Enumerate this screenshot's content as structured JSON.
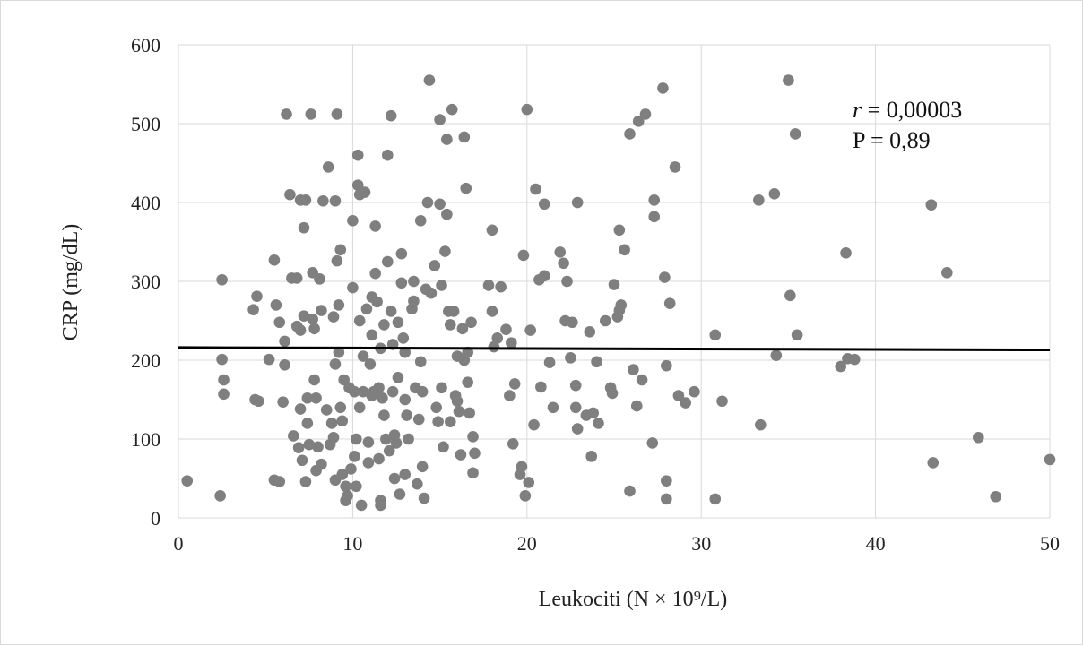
{
  "chart_data": {
    "type": "scatter",
    "title": "",
    "xlabel": "Leukociti (N × 10⁹/L)",
    "ylabel": "CRP (mg/dL)",
    "xlim": [
      0,
      50
    ],
    "ylim": [
      0,
      600
    ],
    "x_ticks": [
      0,
      10,
      20,
      30,
      40,
      50
    ],
    "y_ticks": [
      0,
      100,
      200,
      300,
      400,
      500,
      600
    ],
    "x_tick_labels": [
      "0",
      "10",
      "20",
      "30",
      "40",
      "50"
    ],
    "y_tick_labels": [
      "0",
      "100",
      "200",
      "300",
      "400",
      "500",
      "600"
    ],
    "grid": true,
    "annotation": {
      "r_symbol": "r",
      "r_value": " = 0,00003",
      "p_text": "P = 0,89"
    },
    "trendline": {
      "x": [
        0,
        50
      ],
      "y": [
        216,
        213
      ]
    },
    "marker_color": "#7f7f7f",
    "line_color": "#000000",
    "series": [
      {
        "points": [
          [
            0.5,
            47
          ],
          [
            2.4,
            28
          ],
          [
            2.5,
            302
          ],
          [
            2.5,
            201
          ],
          [
            2.6,
            175
          ],
          [
            2.6,
            157
          ],
          [
            4.3,
            264
          ],
          [
            4.4,
            150
          ],
          [
            4.5,
            281
          ],
          [
            4.6,
            148
          ],
          [
            5.2,
            201
          ],
          [
            5.5,
            327
          ],
          [
            5.5,
            48
          ],
          [
            5.6,
            270
          ],
          [
            5.8,
            248
          ],
          [
            5.8,
            46
          ],
          [
            6.0,
            147
          ],
          [
            6.1,
            224
          ],
          [
            6.1,
            194
          ],
          [
            6.2,
            512
          ],
          [
            6.4,
            410
          ],
          [
            6.5,
            304
          ],
          [
            6.6,
            104
          ],
          [
            6.8,
            243
          ],
          [
            6.8,
            304
          ],
          [
            6.9,
            89
          ],
          [
            7.0,
            238
          ],
          [
            7.0,
            403
          ],
          [
            7.0,
            138
          ],
          [
            7.1,
            73
          ],
          [
            7.2,
            368
          ],
          [
            7.2,
            256
          ],
          [
            7.3,
            403
          ],
          [
            7.3,
            46
          ],
          [
            7.4,
            152
          ],
          [
            7.4,
            120
          ],
          [
            7.5,
            93
          ],
          [
            7.6,
            512
          ],
          [
            7.7,
            252
          ],
          [
            7.7,
            311
          ],
          [
            7.8,
            240
          ],
          [
            7.8,
            175
          ],
          [
            7.9,
            152
          ],
          [
            7.9,
            60
          ],
          [
            8.0,
            90
          ],
          [
            8.1,
            303
          ],
          [
            8.2,
            263
          ],
          [
            8.2,
            68
          ],
          [
            8.3,
            402
          ],
          [
            8.5,
            137
          ],
          [
            8.6,
            445
          ],
          [
            8.7,
            93
          ],
          [
            8.8,
            120
          ],
          [
            8.9,
            102
          ],
          [
            8.9,
            255
          ],
          [
            9.0,
            402
          ],
          [
            9.0,
            195
          ],
          [
            9.0,
            48
          ],
          [
            9.1,
            512
          ],
          [
            9.1,
            326
          ],
          [
            9.2,
            270
          ],
          [
            9.2,
            210
          ],
          [
            9.3,
            340
          ],
          [
            9.3,
            140
          ],
          [
            9.4,
            123
          ],
          [
            9.4,
            55
          ],
          [
            9.5,
            175
          ],
          [
            9.6,
            40
          ],
          [
            9.6,
            22
          ],
          [
            9.7,
            28
          ],
          [
            9.8,
            165
          ],
          [
            9.9,
            62
          ],
          [
            10.0,
            377
          ],
          [
            10.0,
            292
          ],
          [
            10.1,
            160
          ],
          [
            10.1,
            78
          ],
          [
            10.2,
            100
          ],
          [
            10.2,
            40
          ],
          [
            10.3,
            460
          ],
          [
            10.3,
            422
          ],
          [
            10.4,
            410
          ],
          [
            10.4,
            250
          ],
          [
            10.4,
            140
          ],
          [
            10.5,
            16
          ],
          [
            10.6,
            205
          ],
          [
            10.6,
            160
          ],
          [
            10.7,
            413
          ],
          [
            10.8,
            265
          ],
          [
            10.9,
            96
          ],
          [
            10.9,
            70
          ],
          [
            11.0,
            195
          ],
          [
            11.1,
            280
          ],
          [
            11.1,
            155
          ],
          [
            11.1,
            232
          ],
          [
            11.2,
            160
          ],
          [
            11.3,
            370
          ],
          [
            11.3,
            310
          ],
          [
            11.4,
            274
          ],
          [
            11.5,
            165
          ],
          [
            11.5,
            75
          ],
          [
            11.6,
            215
          ],
          [
            11.6,
            16
          ],
          [
            11.6,
            22
          ],
          [
            11.7,
            152
          ],
          [
            11.8,
            245
          ],
          [
            11.8,
            130
          ],
          [
            11.9,
            100
          ],
          [
            12.0,
            460
          ],
          [
            12.0,
            325
          ],
          [
            12.1,
            85
          ],
          [
            12.2,
            510
          ],
          [
            12.2,
            262
          ],
          [
            12.3,
            220
          ],
          [
            12.3,
            160
          ],
          [
            12.4,
            105
          ],
          [
            12.4,
            50
          ],
          [
            12.5,
            95
          ],
          [
            12.6,
            248
          ],
          [
            12.6,
            178
          ],
          [
            12.7,
            30
          ],
          [
            12.8,
            335
          ],
          [
            12.8,
            298
          ],
          [
            12.9,
            228
          ],
          [
            13.0,
            210
          ],
          [
            13.0,
            150
          ],
          [
            13.0,
            55
          ],
          [
            13.1,
            130
          ],
          [
            13.2,
            100
          ],
          [
            13.4,
            265
          ],
          [
            13.5,
            300
          ],
          [
            13.5,
            275
          ],
          [
            13.6,
            165
          ],
          [
            13.7,
            43
          ],
          [
            13.8,
            125
          ],
          [
            13.9,
            377
          ],
          [
            13.9,
            198
          ],
          [
            14.0,
            160
          ],
          [
            14.0,
            65
          ],
          [
            14.1,
            25
          ],
          [
            14.2,
            290
          ],
          [
            14.3,
            400
          ],
          [
            14.4,
            555
          ],
          [
            14.5,
            285
          ],
          [
            14.7,
            320
          ],
          [
            14.8,
            140
          ],
          [
            14.9,
            122
          ],
          [
            15.0,
            505
          ],
          [
            15.0,
            398
          ],
          [
            15.1,
            295
          ],
          [
            15.1,
            165
          ],
          [
            15.2,
            90
          ],
          [
            15.3,
            338
          ],
          [
            15.4,
            385
          ],
          [
            15.4,
            480
          ],
          [
            15.5,
            262
          ],
          [
            15.6,
            122
          ],
          [
            15.6,
            245
          ],
          [
            15.7,
            518
          ],
          [
            15.8,
            262
          ],
          [
            15.9,
            155
          ],
          [
            16.0,
            205
          ],
          [
            16.0,
            148
          ],
          [
            16.1,
            135
          ],
          [
            16.2,
            80
          ],
          [
            16.3,
            240
          ],
          [
            16.4,
            483
          ],
          [
            16.4,
            200
          ],
          [
            16.5,
            418
          ],
          [
            16.6,
            210
          ],
          [
            16.6,
            172
          ],
          [
            16.7,
            133
          ],
          [
            16.8,
            248
          ],
          [
            16.9,
            103
          ],
          [
            16.9,
            57
          ],
          [
            17.0,
            82
          ],
          [
            17.8,
            295
          ],
          [
            18.0,
            365
          ],
          [
            18.0,
            262
          ],
          [
            18.1,
            217
          ],
          [
            18.3,
            228
          ],
          [
            18.5,
            293
          ],
          [
            18.8,
            239
          ],
          [
            19.0,
            155
          ],
          [
            19.1,
            222
          ],
          [
            19.2,
            94
          ],
          [
            19.3,
            170
          ],
          [
            19.6,
            55
          ],
          [
            19.7,
            65
          ],
          [
            19.8,
            333
          ],
          [
            19.9,
            28
          ],
          [
            20.0,
            518
          ],
          [
            20.1,
            45
          ],
          [
            20.2,
            238
          ],
          [
            20.4,
            118
          ],
          [
            20.5,
            417
          ],
          [
            20.7,
            302
          ],
          [
            20.8,
            166
          ],
          [
            21.0,
            307
          ],
          [
            21.0,
            398
          ],
          [
            21.3,
            197
          ],
          [
            21.5,
            140
          ],
          [
            21.9,
            337
          ],
          [
            22.1,
            323
          ],
          [
            22.2,
            250
          ],
          [
            22.3,
            300
          ],
          [
            22.5,
            203
          ],
          [
            22.6,
            248
          ],
          [
            22.8,
            168
          ],
          [
            22.8,
            140
          ],
          [
            22.9,
            113
          ],
          [
            22.9,
            400
          ],
          [
            23.4,
            130
          ],
          [
            23.6,
            236
          ],
          [
            23.7,
            78
          ],
          [
            23.8,
            133
          ],
          [
            24.0,
            198
          ],
          [
            24.1,
            120
          ],
          [
            24.5,
            250
          ],
          [
            24.8,
            165
          ],
          [
            24.9,
            158
          ],
          [
            25.0,
            296
          ],
          [
            25.2,
            255
          ],
          [
            25.3,
            365
          ],
          [
            25.3,
            263
          ],
          [
            25.4,
            270
          ],
          [
            25.6,
            340
          ],
          [
            25.9,
            487
          ],
          [
            25.9,
            34
          ],
          [
            26.1,
            188
          ],
          [
            26.3,
            142
          ],
          [
            26.4,
            503
          ],
          [
            26.6,
            175
          ],
          [
            26.8,
            512
          ],
          [
            27.2,
            95
          ],
          [
            27.3,
            403
          ],
          [
            27.3,
            382
          ],
          [
            27.8,
            545
          ],
          [
            27.9,
            305
          ],
          [
            28.0,
            193
          ],
          [
            28.0,
            47
          ],
          [
            28.0,
            24
          ],
          [
            28.2,
            272
          ],
          [
            28.5,
            445
          ],
          [
            28.7,
            155
          ],
          [
            29.1,
            146
          ],
          [
            29.6,
            160
          ],
          [
            30.8,
            232
          ],
          [
            30.8,
            24
          ],
          [
            31.2,
            148
          ],
          [
            33.3,
            403
          ],
          [
            33.4,
            118
          ],
          [
            34.2,
            411
          ],
          [
            34.3,
            206
          ],
          [
            35.0,
            555
          ],
          [
            35.1,
            282
          ],
          [
            35.4,
            487
          ],
          [
            35.5,
            232
          ],
          [
            38.0,
            192
          ],
          [
            38.3,
            336
          ],
          [
            38.4,
            202
          ],
          [
            38.8,
            201
          ],
          [
            43.2,
            397
          ],
          [
            43.3,
            70
          ],
          [
            44.1,
            311
          ],
          [
            45.9,
            102
          ],
          [
            46.9,
            27
          ],
          [
            50.0,
            74
          ]
        ]
      }
    ]
  }
}
